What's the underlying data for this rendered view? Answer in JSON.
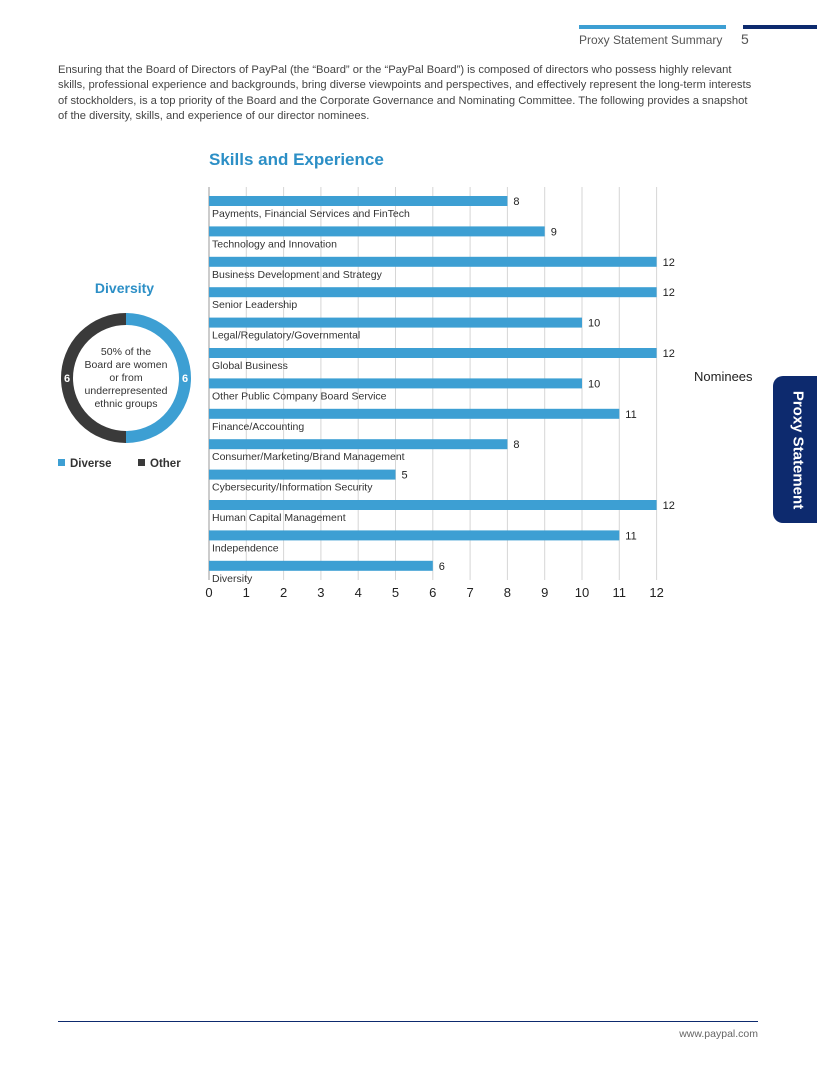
{
  "header": {
    "section": "Proxy Statement Summary",
    "page_number": "5"
  },
  "intro": "Ensuring that the Board of Directors of PayPal (the “Board” or the “PayPal Board”) is composed of directors who possess highly relevant skills, professional experience and backgrounds, bring diverse viewpoints and perspectives, and effectively represent the long-term interests of stockholders, is a top priority of the Board and the Corporate Governance and Nominating Committee. The following provides a snapshot of the diversity, skills, and experience of our director nominees.",
  "side_tab": "Proxy Statement",
  "footer": {
    "url": "www.paypal.com"
  },
  "colors": {
    "accent": "#3d9fd3",
    "brand_dark": "#0d2a6e",
    "other": "#3a3a3a"
  },
  "chart_data": [
    {
      "type": "bar",
      "orientation": "horizontal",
      "title": "Skills and Experience",
      "xlabel": "Nominees",
      "ylabel": "",
      "xlim": [
        0,
        12
      ],
      "ticks": [
        "0",
        "1",
        "2",
        "3",
        "4",
        "5",
        "6",
        "7",
        "8",
        "9",
        "10",
        "11",
        "12"
      ],
      "grid": true,
      "categories": [
        "Payments, Financial Services and FinTech",
        "Technology and Innovation",
        "Business Development and Strategy",
        "Senior Leadership",
        "Legal/Regulatory/Governmental",
        "Global Business",
        "Other Public Company Board Service",
        "Finance/Accounting",
        "Consumer/Marketing/Brand Management",
        "Cybersecurity/Information Security",
        "Human Capital Management",
        "Independence",
        "Diversity"
      ],
      "values": [
        8,
        9,
        12,
        12,
        10,
        12,
        10,
        11,
        8,
        5,
        12,
        11,
        6
      ],
      "color": "#3d9fd3"
    },
    {
      "type": "pie",
      "style": "donut",
      "title": "Diversity",
      "center_text": [
        "50% of the",
        "Board are women",
        "or from",
        "underrepresented",
        "ethnic groups"
      ],
      "series": [
        {
          "name": "Diverse",
          "value": 6,
          "color": "#3d9fd3"
        },
        {
          "name": "Other",
          "value": 6,
          "color": "#3a3a3a"
        }
      ],
      "legend": "bottom"
    }
  ]
}
